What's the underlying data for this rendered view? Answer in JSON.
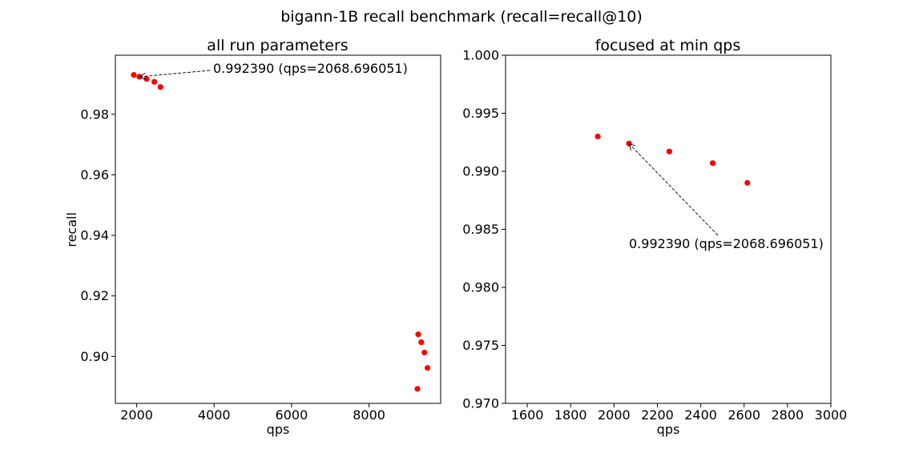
{
  "figure": {
    "suptitle": "bigann-1B recall benchmark (recall=recall@10)"
  },
  "colors": {
    "point": "#ff0000",
    "axes": "#000000",
    "background": "#ffffff"
  },
  "chart_data": [
    {
      "type": "scatter",
      "title": "all run parameters",
      "xlabel": "qps",
      "ylabel": "recall",
      "xlim": [
        1450,
        9850
      ],
      "ylim": [
        0.8845,
        0.9995
      ],
      "xticks": [
        2000,
        4000,
        6000,
        8000
      ],
      "xtick_labels": [
        "2000",
        "4000",
        "6000",
        "8000"
      ],
      "yticks": [
        0.9,
        0.92,
        0.94,
        0.96,
        0.98
      ],
      "ytick_labels": [
        "0.90",
        "0.92",
        "0.94",
        "0.96",
        "0.98"
      ],
      "grid": false,
      "points": [
        {
          "x": 1925,
          "y": 0.993
        },
        {
          "x": 2069,
          "y": 0.99239
        },
        {
          "x": 2255,
          "y": 0.9917
        },
        {
          "x": 2455,
          "y": 0.9907
        },
        {
          "x": 2615,
          "y": 0.989
        },
        {
          "x": 9270,
          "y": 0.9073
        },
        {
          "x": 9350,
          "y": 0.9047
        },
        {
          "x": 9430,
          "y": 0.9013
        },
        {
          "x": 9510,
          "y": 0.8962
        },
        {
          "x": 9250,
          "y": 0.8893
        }
      ],
      "annotation": {
        "text": "0.992390 (qps=2068.696051)",
        "point": {
          "x": 2069,
          "y": 0.99239
        }
      }
    },
    {
      "type": "scatter",
      "title": "focused at min qps",
      "xlabel": "qps",
      "ylabel": "",
      "xlim": [
        1500,
        3000
      ],
      "ylim": [
        0.97,
        1.0
      ],
      "xticks": [
        1600,
        1800,
        2000,
        2200,
        2400,
        2600,
        2800,
        3000
      ],
      "xtick_labels": [
        "1600",
        "1800",
        "2000",
        "2200",
        "2400",
        "2600",
        "2800",
        "3000"
      ],
      "yticks": [
        0.97,
        0.975,
        0.98,
        0.985,
        0.99,
        0.995,
        1.0
      ],
      "ytick_labels": [
        "0.970",
        "0.975",
        "0.980",
        "0.985",
        "0.990",
        "0.995",
        "1.000"
      ],
      "grid": false,
      "points": [
        {
          "x": 1925,
          "y": 0.993
        },
        {
          "x": 2069,
          "y": 0.99239
        },
        {
          "x": 2255,
          "y": 0.9917
        },
        {
          "x": 2455,
          "y": 0.9907
        },
        {
          "x": 2615,
          "y": 0.989
        }
      ],
      "annotation": {
        "text": "0.992390 (qps=2068.696051)",
        "point": {
          "x": 2069,
          "y": 0.99239
        }
      }
    }
  ]
}
